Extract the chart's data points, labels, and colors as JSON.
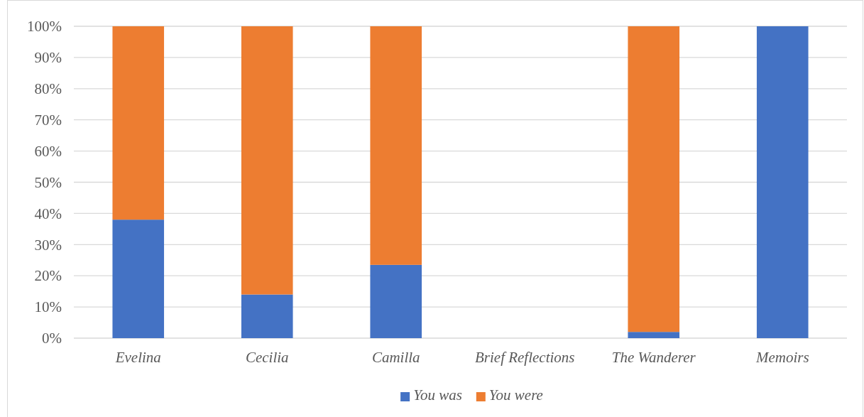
{
  "chart_data": {
    "type": "bar",
    "stacked": true,
    "categories": [
      "Evelina",
      "Cecilia",
      "Camilla",
      "Brief Reflections",
      "The Wanderer",
      "Memoirs"
    ],
    "series": [
      {
        "name": "You was",
        "color": "#4472c4",
        "values": [
          38,
          14,
          23.5,
          null,
          2,
          100
        ]
      },
      {
        "name": "You were",
        "color": "#ed7d31",
        "values": [
          62,
          86,
          76.5,
          null,
          98,
          0
        ]
      }
    ],
    "ylim": [
      0,
      100
    ],
    "yticks": [
      {
        "value": 0,
        "label": "0%"
      },
      {
        "value": 10,
        "label": "10%"
      },
      {
        "value": 20,
        "label": "20%"
      },
      {
        "value": 30,
        "label": "30%"
      },
      {
        "value": 40,
        "label": "40%"
      },
      {
        "value": 50,
        "label": "50%"
      },
      {
        "value": 60,
        "label": "60%"
      },
      {
        "value": 70,
        "label": "70%"
      },
      {
        "value": 80,
        "label": "80%"
      },
      {
        "value": 90,
        "label": "90%"
      },
      {
        "value": 100,
        "label": "100%"
      }
    ],
    "grid": "y",
    "legend": "bottom"
  }
}
